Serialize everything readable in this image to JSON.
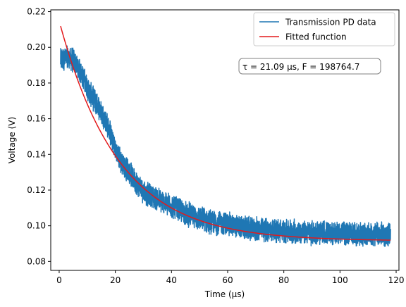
{
  "chart_data": {
    "type": "line",
    "xlabel": "Time (µs)",
    "ylabel": "Voltage (V)",
    "xlim": [
      -3,
      121
    ],
    "ylim": [
      0.075,
      0.221
    ],
    "xticks": [
      0,
      20,
      40,
      60,
      80,
      100,
      120
    ],
    "yticks": [
      0.08,
      0.1,
      0.12,
      0.14,
      0.16,
      0.18,
      0.2,
      0.22
    ],
    "ytick_labels": [
      "0.08",
      "0.10",
      "0.12",
      "0.14",
      "0.16",
      "0.18",
      "0.20",
      "0.22"
    ],
    "grid": false,
    "legend_position": "top-right",
    "series": [
      {
        "name": "Transmission PD data",
        "color": "#1f77b4",
        "x_range": [
          0.5,
          118
        ],
        "trend": [
          [
            0.5,
            0.193
          ],
          [
            3,
            0.194
          ],
          [
            5,
            0.193
          ],
          [
            8,
            0.185
          ],
          [
            11,
            0.174
          ],
          [
            14,
            0.167
          ],
          [
            17,
            0.157
          ],
          [
            19,
            0.148
          ],
          [
            20,
            0.143
          ],
          [
            22,
            0.136
          ],
          [
            25,
            0.13
          ],
          [
            28,
            0.123
          ],
          [
            31,
            0.118
          ],
          [
            35,
            0.115
          ],
          [
            40,
            0.111
          ],
          [
            45,
            0.107
          ],
          [
            50,
            0.104
          ],
          [
            55,
            0.102
          ],
          [
            60,
            0.101
          ],
          [
            65,
            0.099
          ],
          [
            70,
            0.098
          ],
          [
            80,
            0.097
          ],
          [
            90,
            0.096
          ],
          [
            100,
            0.096
          ],
          [
            110,
            0.095
          ],
          [
            118,
            0.095
          ]
        ],
        "noise_amplitude": 0.006
      },
      {
        "name": "Fitted function",
        "color": "#e31a1c",
        "x_range": [
          0.5,
          118
        ],
        "model": "exponential_decay",
        "tau_us": 21.09,
        "offset": 0.0915,
        "amplitude": 0.1233
      }
    ],
    "annotation": {
      "text": "τ = 21.09 µs, F = 198764.7",
      "position": "upper-right"
    }
  }
}
